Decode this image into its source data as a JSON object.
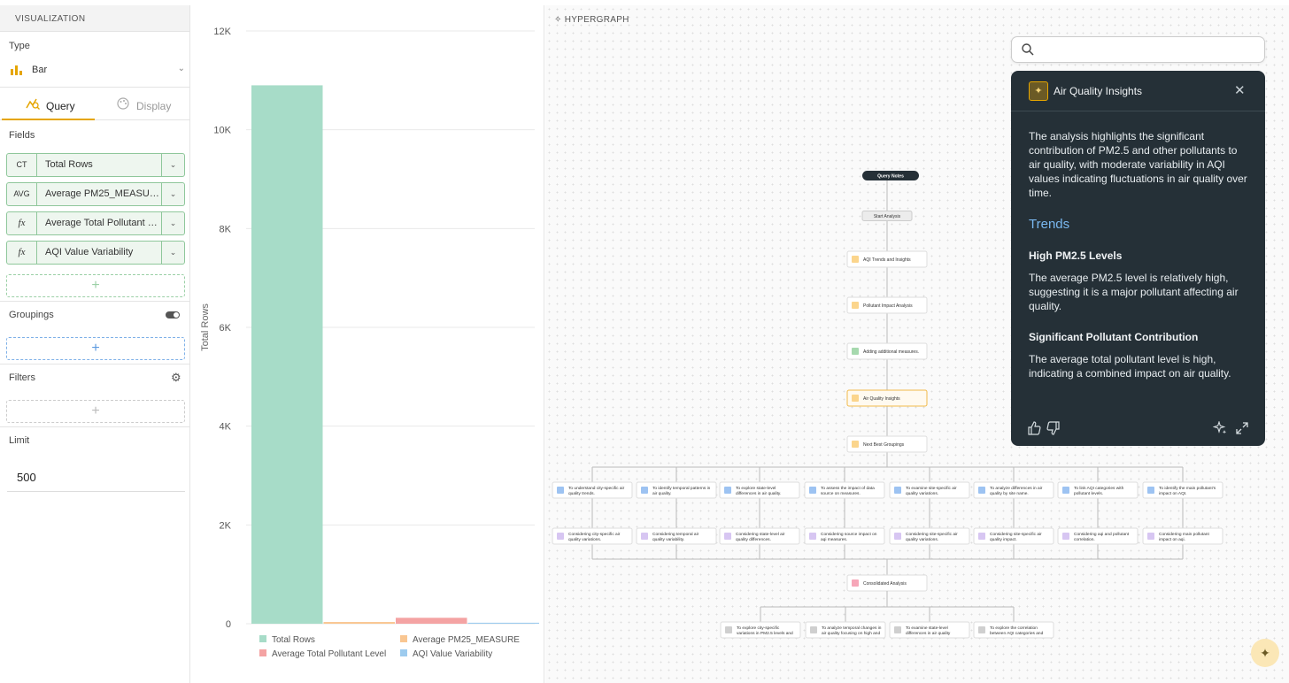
{
  "visualization": {
    "section_title": "VISUALIZATION",
    "type_label": "Type",
    "type_value": "Bar",
    "tabs": [
      {
        "label": "Query",
        "active": true
      },
      {
        "label": "Display",
        "active": false
      }
    ],
    "fields_label": "Fields",
    "fields": [
      {
        "badge": "CT",
        "name": "Total Rows"
      },
      {
        "badge": "AVG",
        "name": "Average PM25_MEASURE"
      },
      {
        "badge": "fx",
        "name": "Average Total Pollutant Level"
      },
      {
        "badge": "fx",
        "name": "AQI Value Variability"
      }
    ],
    "groupings_label": "Groupings",
    "filters_label": "Filters",
    "limit_label": "Limit",
    "limit_value": "500",
    "add_symbol": "+"
  },
  "chart_data": {
    "type": "bar",
    "ylabel": "Total Rows",
    "ylim": [
      0,
      12000
    ],
    "yticks": [
      0,
      2000,
      4000,
      6000,
      8000,
      10000,
      12000
    ],
    "ytick_labels": [
      "0",
      "2K",
      "4K",
      "6K",
      "8K",
      "10K",
      "12K"
    ],
    "grid": true,
    "legend_position": "bottom",
    "series": [
      {
        "name": "Total Rows",
        "value": 10900,
        "color": "#a7dcc8"
      },
      {
        "name": "Average PM25_MEASURE",
        "value": 35,
        "color": "#f9c691"
      },
      {
        "name": "Average Total Pollutant Level",
        "value": 120,
        "color": "#f4a3a3"
      },
      {
        "name": "AQI Value Variability",
        "value": 20,
        "color": "#9dcbee"
      }
    ]
  },
  "hypergraph": {
    "title": "HYPERGRAPH",
    "nodes": {
      "root": "Query Notes",
      "start": "Start Analysis",
      "n1": "AQI Trends and Insights",
      "n2": "Pollutant Impact Analysis",
      "n3": "Adding additional measures.",
      "n4": "Air Quality Insights",
      "n5": "Next Best Groupings",
      "consolidated": "Consolidated Analysis"
    },
    "questions": [
      [
        "To understand city-specific air",
        "quality trends."
      ],
      [
        "To identify temporal patterns in",
        "air quality."
      ],
      [
        "To explore state-level",
        "differences in air quality."
      ],
      [
        "To assess the impact of data",
        "source on measures."
      ],
      [
        "To examine site-specific air",
        "quality variations."
      ],
      [
        "To analyze differences in air",
        "quality by site name."
      ],
      [
        "To link AQI categories with",
        "pollutant levels."
      ],
      [
        "To identify the main pollutant's",
        "impact on AQI."
      ]
    ],
    "considerations": [
      [
        "Considering city-specific air",
        "quality variations."
      ],
      [
        "Considering temporal air",
        "quality variability."
      ],
      [
        "Considering state-level air",
        "quality differences."
      ],
      [
        "Considering source impact on",
        "aqi measures."
      ],
      [
        "Considering site-specific air",
        "quality variations."
      ],
      [
        "Considering site-specific air",
        "quality impact."
      ],
      [
        "Considering aqi and pollutant",
        "correlation."
      ],
      [
        "Considering main pollutant",
        "impact on aqi."
      ]
    ],
    "followups": [
      [
        "To explore city-specific",
        "variations in PM2.5 levels and"
      ],
      [
        "To analyze temporal changes in",
        "air quality focusing on high and"
      ],
      [
        "To examine state-level",
        "differences in air quality"
      ],
      [
        "To explore the correlation",
        "between AQI categories and"
      ]
    ]
  },
  "search": {
    "placeholder": ""
  },
  "insight": {
    "title": "Air Quality Insights",
    "summary": "The analysis highlights the significant contribution of PM2.5 and other pollutants to air quality, with moderate variability in AQI values indicating fluctuations in air quality over time.",
    "trends_heading": "Trends",
    "items": [
      {
        "heading": "High PM2.5 Levels",
        "text": "The average PM2.5 level is relatively high, suggesting it is a major pollutant affecting air quality."
      },
      {
        "heading": "Significant Pollutant Contribution",
        "text": "The average total pollutant level is high, indicating a combined impact on air quality."
      }
    ]
  },
  "colors": {
    "accent": "#e5a500",
    "field_border": "#8fc79b",
    "insight_bg": "#253037",
    "trends_blue": "#7ab8f0"
  }
}
